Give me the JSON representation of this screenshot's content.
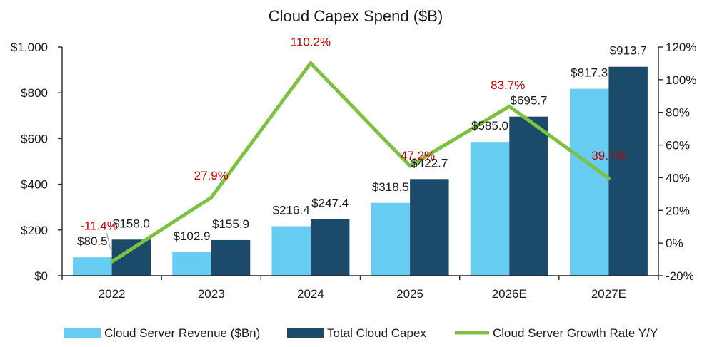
{
  "chart_data": {
    "type": "bar",
    "title": "Cloud Capex Spend ($B)",
    "categories": [
      "2022",
      "2023",
      "2024",
      "2025",
      "2026E",
      "2027E"
    ],
    "y_axis": {
      "min": 0,
      "max": 1000,
      "ticks": [
        0,
        200,
        400,
        600,
        800,
        1000
      ],
      "tick_labels": [
        "$0",
        "$200",
        "$400",
        "$600",
        "$800",
        "$1,000"
      ]
    },
    "y2_axis": {
      "min": -20,
      "max": 120,
      "ticks": [
        -20,
        0,
        20,
        40,
        60,
        80,
        100,
        120
      ],
      "tick_labels": [
        "-20%",
        "0%",
        "20%",
        "40%",
        "60%",
        "80%",
        "100%",
        "120%"
      ]
    },
    "series": [
      {
        "name": "Cloud Server Revenue ($Bn)",
        "type": "bar",
        "axis": "left",
        "color": "#66CCF2",
        "values": [
          80.5,
          102.9,
          216.4,
          318.5,
          585.0,
          817.3
        ],
        "labels": [
          "$80.5",
          "$102.9",
          "$216.4",
          "$318.5",
          "$585.0",
          "$817.3"
        ]
      },
      {
        "name": "Total Cloud Capex",
        "type": "bar",
        "axis": "left",
        "color": "#1C4A6B",
        "values": [
          158.0,
          155.9,
          247.4,
          422.7,
          695.7,
          913.7
        ],
        "labels": [
          "$158.0",
          "$155.9",
          "$247.4",
          "$422.7",
          "$695.7",
          "$913.7"
        ]
      },
      {
        "name": "Cloud Server Growth Rate Y/Y",
        "type": "line",
        "axis": "right",
        "color": "#7DC142",
        "label_color": "#C00000",
        "values": [
          -11.4,
          27.9,
          110.2,
          47.2,
          83.7,
          39.7
        ],
        "labels": [
          "-11.4%",
          "27.9%",
          "110.2%",
          "47.2%",
          "83.7%",
          "39.7%"
        ]
      }
    ],
    "legend": {
      "position": "bottom"
    },
    "grid": false
  }
}
